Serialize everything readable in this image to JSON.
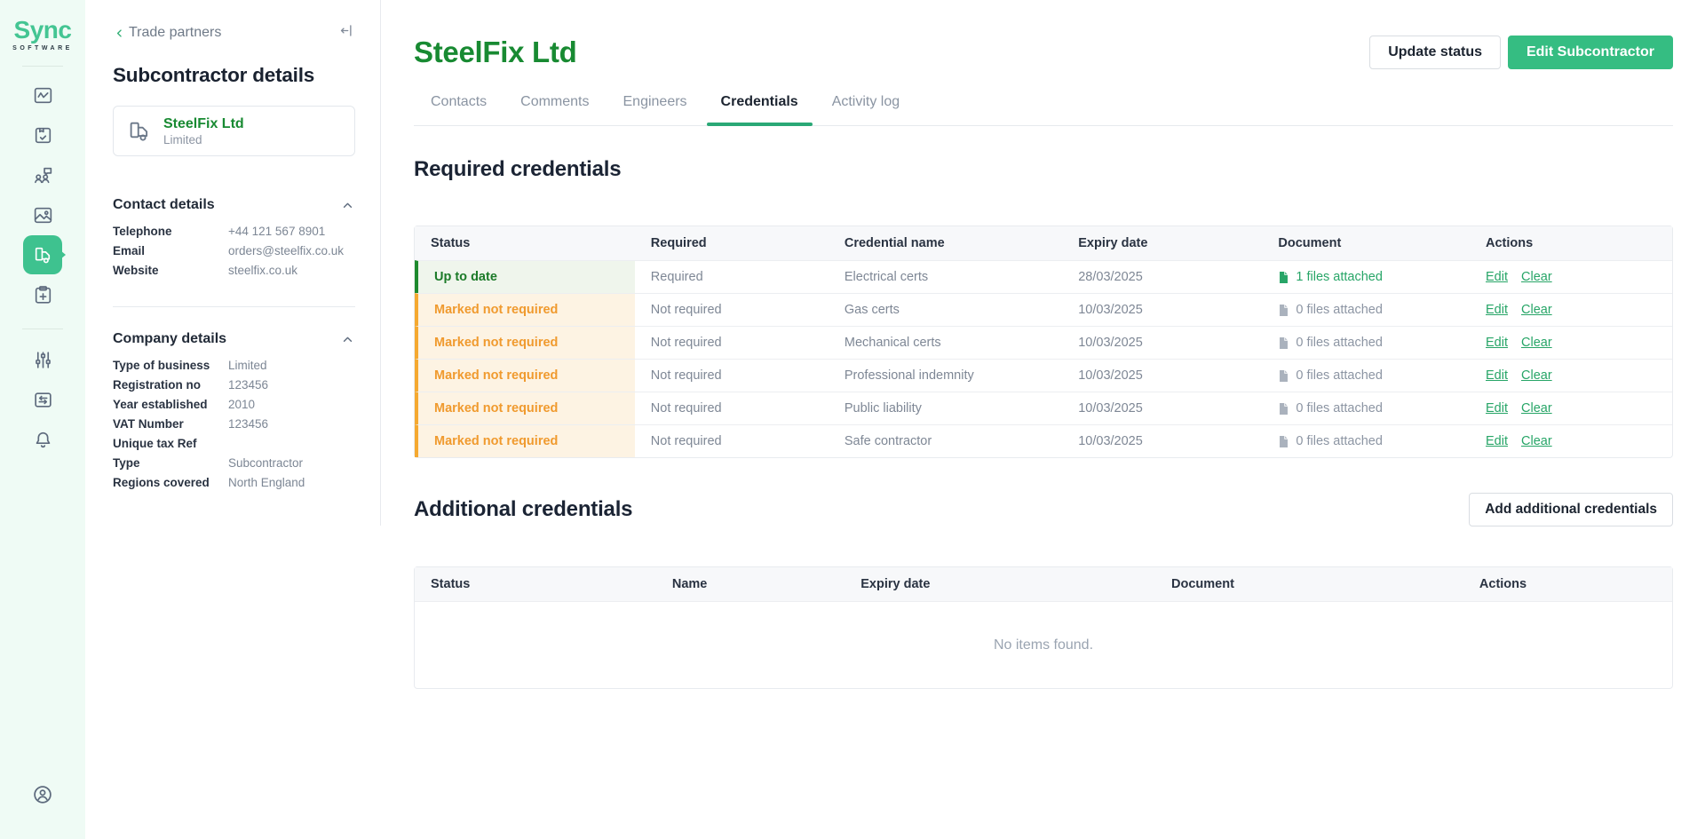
{
  "brand": {
    "name": "Sync",
    "tagline": "SOFTWARE"
  },
  "colors": {
    "rail_bg": "#effbf5",
    "brand_green": "#3ec28f",
    "title_green": "#188a32",
    "primary_button_green": "#35bd82",
    "tab_underline_green": "#2aa876",
    "link_green": "#27a567",
    "status_ok_text": "#1b7a28",
    "status_ok_border": "#1e8a2e",
    "status_ok_bg": "#eff5ec",
    "status_warn_text": "#f09a2e",
    "status_warn_border": "#f5a930",
    "status_warn_bg": "#fdf3e3"
  },
  "rail": {
    "primary": [
      {
        "name": "dashboard",
        "icon": "activity-chart",
        "active": false
      },
      {
        "name": "orders",
        "icon": "package-check",
        "active": false
      },
      {
        "name": "team",
        "icon": "people-chat",
        "active": false
      },
      {
        "name": "gallery",
        "icon": "image",
        "active": false
      },
      {
        "name": "trade-partners",
        "icon": "truck",
        "active": true
      },
      {
        "name": "new-job",
        "icon": "clipboard-plus",
        "active": false
      }
    ],
    "secondary": [
      {
        "name": "settings",
        "icon": "sliders",
        "active": false
      },
      {
        "name": "transactions",
        "icon": "card-swap",
        "active": false
      },
      {
        "name": "notifications",
        "icon": "bell",
        "active": false
      }
    ],
    "footer": {
      "name": "account",
      "icon": "user-circle"
    }
  },
  "sidebar": {
    "breadcrumb": "Trade partners",
    "title": "Subcontractor details",
    "partner_card": {
      "name": "SteelFix Ltd",
      "type": "Limited"
    },
    "contact_details": {
      "title": "Contact details",
      "rows": [
        {
          "label": "Telephone",
          "value": "+44 121 567 8901"
        },
        {
          "label": "Email",
          "value": "orders@steelfix.co.uk"
        },
        {
          "label": "Website",
          "value": "steelfix.co.uk"
        }
      ]
    },
    "company_details": {
      "title": "Company details",
      "rows": [
        {
          "label": "Type of business",
          "value": "Limited"
        },
        {
          "label": "Registration no",
          "value": "123456"
        },
        {
          "label": "Year established",
          "value": "2010"
        },
        {
          "label": "VAT Number",
          "value": "123456"
        },
        {
          "label": "Unique tax Ref",
          "value": ""
        },
        {
          "label": "Type",
          "value": "Subcontractor"
        },
        {
          "label": "Regions covered",
          "value": "North England"
        }
      ]
    }
  },
  "header": {
    "title": "SteelFix Ltd",
    "buttons": [
      {
        "label": "Update status",
        "style": "secondary"
      },
      {
        "label": "Edit Subcontractor",
        "style": "primary"
      }
    ]
  },
  "tabs": {
    "items": [
      "Contacts",
      "Comments",
      "Engineers",
      "Credentials",
      "Activity log"
    ],
    "active": "Credentials"
  },
  "required_credentials": {
    "title": "Required credentials",
    "columns": [
      "Status",
      "Required",
      "Credential name",
      "Expiry date",
      "Document",
      "Actions"
    ],
    "rows": [
      {
        "status": "Up to date",
        "tone": "ok",
        "required": "Required",
        "credential": "Electrical certs",
        "expiry": "28/03/2025",
        "document": "1 files attached",
        "files": 1,
        "actions": [
          "Edit",
          "Clear"
        ]
      },
      {
        "status": "Marked not required",
        "tone": "warn",
        "required": "Not required",
        "credential": "Gas certs",
        "expiry": "10/03/2025",
        "document": "0 files attached",
        "files": 0,
        "actions": [
          "Edit",
          "Clear"
        ]
      },
      {
        "status": "Marked not required",
        "tone": "warn",
        "required": "Not required",
        "credential": "Mechanical certs",
        "expiry": "10/03/2025",
        "document": "0 files attached",
        "files": 0,
        "actions": [
          "Edit",
          "Clear"
        ]
      },
      {
        "status": "Marked not required",
        "tone": "warn",
        "required": "Not required",
        "credential": "Professional indemnity",
        "expiry": "10/03/2025",
        "document": "0 files attached",
        "files": 0,
        "actions": [
          "Edit",
          "Clear"
        ]
      },
      {
        "status": "Marked not required",
        "tone": "warn",
        "required": "Not required",
        "credential": "Public liability",
        "expiry": "10/03/2025",
        "document": "0 files attached",
        "files": 0,
        "actions": [
          "Edit",
          "Clear"
        ]
      },
      {
        "status": "Marked not required",
        "tone": "warn",
        "required": "Not required",
        "credential": "Safe contractor",
        "expiry": "10/03/2025",
        "document": "0 files attached",
        "files": 0,
        "actions": [
          "Edit",
          "Clear"
        ]
      }
    ]
  },
  "additional_credentials": {
    "title": "Additional credentials",
    "add_button": "Add additional credentials",
    "columns": [
      "Status",
      "Name",
      "Expiry date",
      "Document",
      "Actions"
    ],
    "empty_message": "No items found."
  }
}
